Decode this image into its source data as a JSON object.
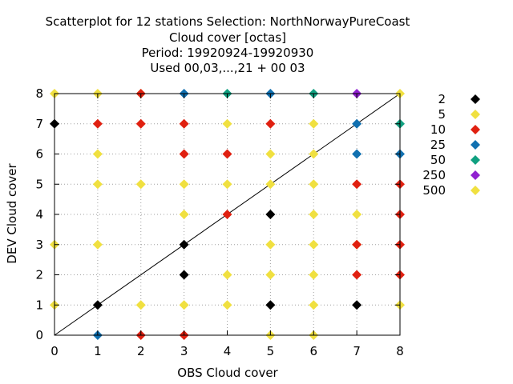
{
  "chart_data": {
    "type": "scatter",
    "title_lines": [
      "Scatterplot for   12 stations Selection: NorthNorwayPureCoast",
      "Cloud cover [octas]",
      "Period: 19920924-19920930",
      "Used  00,03,...,21  + 00 03"
    ],
    "xlabel": "OBS Cloud cover",
    "ylabel": "DEV Cloud cover",
    "xlim": [
      0,
      8
    ],
    "ylim": [
      0,
      8
    ],
    "xticks": [
      "0",
      "1",
      "2",
      "3",
      "4",
      "5",
      "6",
      "7",
      "8"
    ],
    "yticks": [
      "0",
      "1",
      "2",
      "3",
      "4",
      "5",
      "6",
      "7",
      "8"
    ],
    "grid": true,
    "legend_position": "right",
    "diagonal_line": true,
    "series": [
      {
        "name": "2",
        "color": "#000000",
        "points": [
          [
            0,
            7
          ],
          [
            1,
            1
          ],
          [
            3,
            3
          ],
          [
            3,
            2
          ],
          [
            5,
            4
          ],
          [
            5,
            1
          ],
          [
            7,
            1
          ]
        ]
      },
      {
        "name": "5",
        "color": "#f0e040",
        "points": [
          [
            0,
            8
          ],
          [
            1,
            8
          ],
          [
            2,
            8
          ],
          [
            0,
            3
          ],
          [
            0,
            1
          ],
          [
            1,
            6
          ],
          [
            1,
            5
          ],
          [
            1,
            3
          ],
          [
            2,
            5
          ],
          [
            2,
            1
          ],
          [
            3,
            5
          ],
          [
            3,
            4
          ],
          [
            3,
            1
          ],
          [
            4,
            7
          ],
          [
            4,
            5
          ],
          [
            4,
            2
          ],
          [
            4,
            1
          ],
          [
            5,
            6
          ],
          [
            5,
            5
          ],
          [
            5,
            3
          ],
          [
            5,
            2
          ],
          [
            5,
            0
          ],
          [
            6,
            7
          ],
          [
            6,
            6
          ],
          [
            6,
            5
          ],
          [
            6,
            4
          ],
          [
            6,
            3
          ],
          [
            6,
            2
          ],
          [
            6,
            1
          ],
          [
            6,
            0
          ],
          [
            7,
            4
          ],
          [
            7,
            3
          ],
          [
            8,
            8
          ],
          [
            8,
            1
          ]
        ]
      },
      {
        "name": "10",
        "color": "#e02010",
        "points": [
          [
            2,
            8
          ],
          [
            1,
            7
          ],
          [
            2,
            7
          ],
          [
            3,
            7
          ],
          [
            5,
            7
          ],
          [
            3,
            6
          ],
          [
            4,
            6
          ],
          [
            4,
            4
          ],
          [
            7,
            5
          ],
          [
            8,
            5
          ],
          [
            8,
            4
          ],
          [
            7,
            3
          ],
          [
            8,
            3
          ],
          [
            7,
            2
          ],
          [
            8,
            2
          ],
          [
            2,
            0
          ],
          [
            3,
            0
          ]
        ]
      },
      {
        "name": "25",
        "color": "#1070b0",
        "points": [
          [
            3,
            8
          ],
          [
            5,
            8
          ],
          [
            7,
            7
          ],
          [
            7,
            6
          ],
          [
            8,
            6
          ],
          [
            1,
            0
          ]
        ]
      },
      {
        "name": "50",
        "color": "#10a080",
        "points": [
          [
            4,
            8
          ],
          [
            6,
            8
          ],
          [
            8,
            7
          ]
        ]
      },
      {
        "name": "250",
        "color": "#9020d0",
        "points": [
          [
            7,
            8
          ]
        ]
      },
      {
        "name": "500",
        "color": "#f0e040",
        "points": []
      }
    ]
  }
}
